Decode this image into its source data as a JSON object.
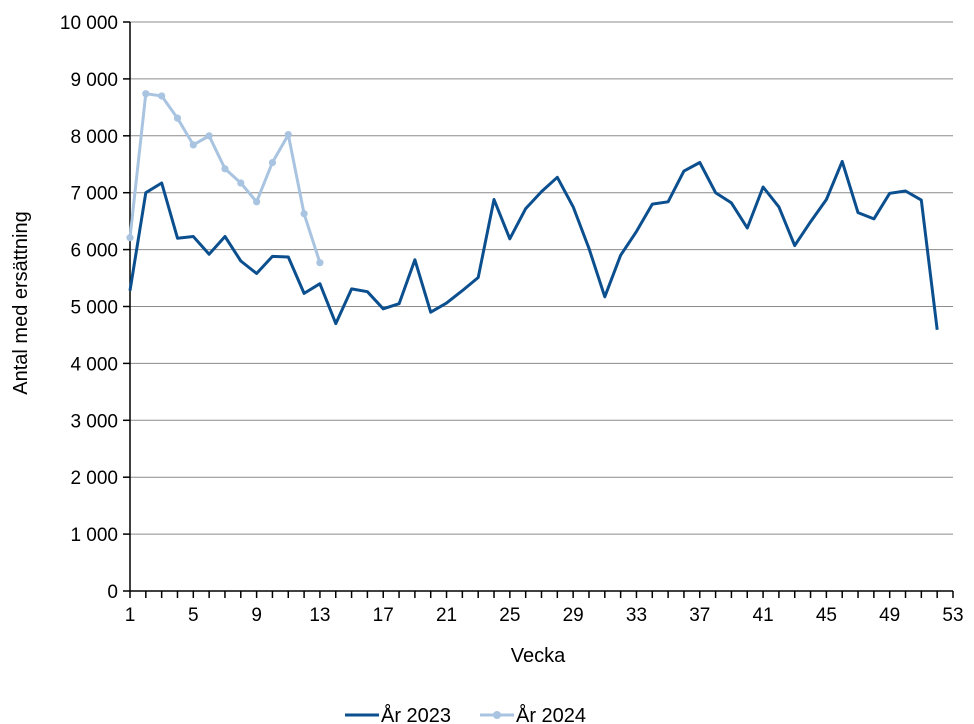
{
  "chart_data": {
    "type": "line",
    "title": "",
    "xlabel": "Vecka",
    "ylabel": "Antal med ersättning",
    "xlim": [
      1,
      53
    ],
    "ylim": [
      0,
      10000
    ],
    "x_ticks": [
      1,
      5,
      9,
      13,
      17,
      21,
      25,
      29,
      33,
      37,
      41,
      45,
      49,
      53
    ],
    "y_ticks": [
      0,
      1000,
      2000,
      3000,
      4000,
      5000,
      6000,
      7000,
      8000,
      9000,
      10000
    ],
    "y_tick_labels": [
      "0",
      "1 000",
      "2 000",
      "3 000",
      "4 000",
      "5 000",
      "6 000",
      "7 000",
      "8 000",
      "9 000",
      "10 000"
    ],
    "grid": "horizontal",
    "legend_position": "bottom",
    "series": [
      {
        "name": "År 2023",
        "color": "#0b4f8f",
        "markers": false,
        "x": [
          1,
          2,
          3,
          4,
          5,
          6,
          7,
          8,
          9,
          10,
          11,
          12,
          13,
          14,
          15,
          16,
          17,
          18,
          19,
          20,
          21,
          22,
          23,
          24,
          25,
          26,
          27,
          28,
          29,
          30,
          31,
          32,
          33,
          34,
          35,
          36,
          37,
          38,
          39,
          40,
          41,
          42,
          43,
          44,
          45,
          46,
          47,
          48,
          49,
          50,
          51,
          52
        ],
        "values": [
          5280,
          7000,
          7170,
          6200,
          6230,
          5920,
          6230,
          5800,
          5580,
          5880,
          5870,
          5230,
          5400,
          4700,
          5310,
          5260,
          4960,
          5050,
          5820,
          4900,
          5060,
          5280,
          5510,
          6880,
          6190,
          6720,
          7020,
          7270,
          6750,
          6020,
          5170,
          5900,
          6320,
          6800,
          6840,
          7380,
          7530,
          7000,
          6820,
          6380,
          7100,
          6750,
          6070,
          6490,
          6880,
          7550,
          6650,
          6540,
          6990,
          7030,
          6870,
          4590
        ]
      },
      {
        "name": "År 2024",
        "color": "#a9c4e0",
        "markers": true,
        "x": [
          1,
          2,
          3,
          4,
          5,
          6,
          7,
          8,
          9,
          10,
          11,
          12,
          13
        ],
        "values": [
          6210,
          8740,
          8700,
          8310,
          7840,
          8000,
          7420,
          7170,
          6840,
          7530,
          8020,
          6630,
          5770
        ]
      }
    ]
  }
}
